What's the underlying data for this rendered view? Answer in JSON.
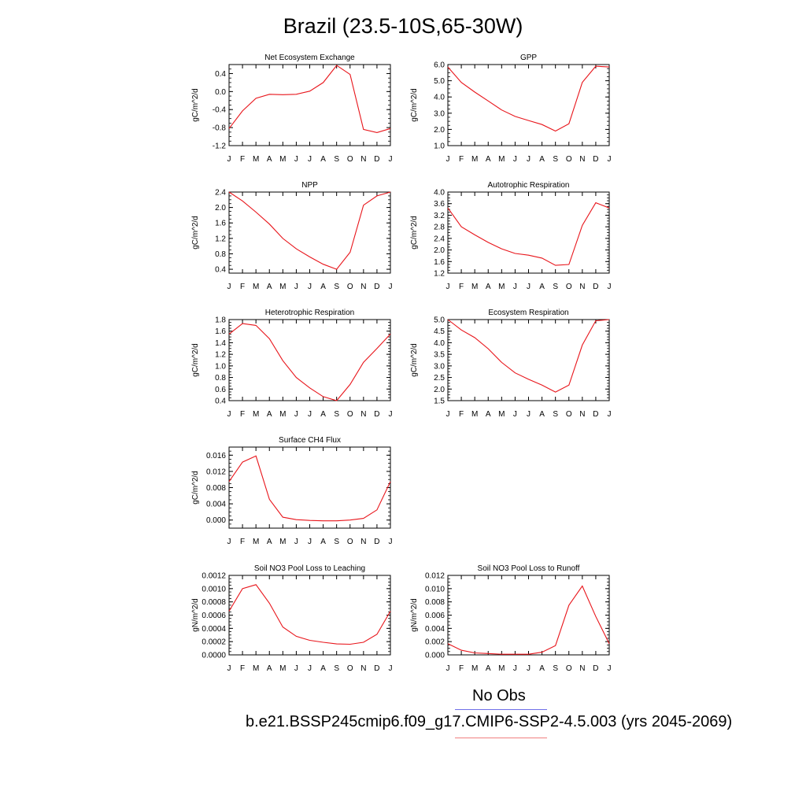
{
  "title": "Brazil (23.5-10S,65-30W)",
  "line_color": "#e8151b",
  "months": [
    "J",
    "F",
    "M",
    "A",
    "M",
    "J",
    "J",
    "A",
    "S",
    "O",
    "N",
    "D",
    "J"
  ],
  "legend": {
    "obs_label": "No Obs",
    "obs_color": "#6f6fe8",
    "model_label": "b.e21.BSSP245cmip6.f09_g17.CMIP6-SSP2-4.5.003 (yrs 2045-2069)",
    "model_color": "#f08080"
  },
  "chart_data": [
    {
      "type": "line",
      "title": "Net Ecosystem Exchange",
      "ylabel": "gC/m^2/d",
      "ylim": [
        -1.2,
        0.6
      ],
      "yticks": [
        "-1.2",
        "-0.8",
        "-0.4",
        "0.0",
        "0.4"
      ],
      "ytick_values": [
        -1.2,
        -0.8,
        -0.4,
        0.0,
        0.4
      ],
      "x": [
        "J",
        "F",
        "M",
        "A",
        "M",
        "J",
        "J",
        "A",
        "S",
        "O",
        "N",
        "D",
        "J"
      ],
      "values": [
        -0.82,
        -0.43,
        -0.15,
        -0.06,
        -0.07,
        -0.06,
        0.01,
        0.2,
        0.58,
        0.38,
        -0.84,
        -0.91,
        -0.82
      ]
    },
    {
      "type": "line",
      "title": "GPP",
      "ylabel": "gC/m^2/d",
      "ylim": [
        1.0,
        6.0
      ],
      "yticks": [
        "1.0",
        "2.0",
        "3.0",
        "4.0",
        "5.0",
        "6.0"
      ],
      "ytick_values": [
        1.0,
        2.0,
        3.0,
        4.0,
        5.0,
        6.0
      ],
      "x": [
        "J",
        "F",
        "M",
        "A",
        "M",
        "J",
        "J",
        "A",
        "S",
        "O",
        "N",
        "D",
        "J"
      ],
      "values": [
        5.85,
        4.9,
        4.3,
        3.75,
        3.2,
        2.8,
        2.55,
        2.3,
        1.9,
        2.35,
        4.9,
        5.9,
        5.85
      ]
    },
    {
      "type": "line",
      "title": "NPP",
      "ylabel": "gC/m^2/d",
      "ylim": [
        0.3,
        2.4
      ],
      "yticks": [
        "0.4",
        "0.8",
        "1.2",
        "1.6",
        "2.0",
        "2.4"
      ],
      "ytick_values": [
        0.4,
        0.8,
        1.2,
        1.6,
        2.0,
        2.4
      ],
      "x": [
        "J",
        "F",
        "M",
        "A",
        "M",
        "J",
        "J",
        "A",
        "S",
        "O",
        "N",
        "D",
        "J"
      ],
      "values": [
        2.4,
        2.17,
        1.88,
        1.57,
        1.2,
        0.93,
        0.72,
        0.53,
        0.4,
        0.84,
        2.06,
        2.3,
        2.4
      ]
    },
    {
      "type": "line",
      "title": "Autotrophic Respiration",
      "ylabel": "gC/m^2/d",
      "ylim": [
        1.2,
        4.0
      ],
      "yticks": [
        "1.2",
        "1.6",
        "2.0",
        "2.4",
        "2.8",
        "3.2",
        "3.6",
        "4.0"
      ],
      "ytick_values": [
        1.2,
        1.6,
        2.0,
        2.4,
        2.8,
        3.2,
        3.6,
        4.0
      ],
      "x": [
        "J",
        "F",
        "M",
        "A",
        "M",
        "J",
        "J",
        "A",
        "S",
        "O",
        "N",
        "D",
        "J"
      ],
      "values": [
        3.45,
        2.8,
        2.52,
        2.26,
        2.04,
        1.88,
        1.82,
        1.72,
        1.47,
        1.5,
        2.85,
        3.63,
        3.45
      ]
    },
    {
      "type": "line",
      "title": "Heterotrophic Respiration",
      "ylabel": "gC/m^2/d",
      "ylim": [
        0.4,
        1.8
      ],
      "yticks": [
        "0.4",
        "0.6",
        "0.8",
        "1.0",
        "1.2",
        "1.4",
        "1.6",
        "1.8"
      ],
      "ytick_values": [
        0.4,
        0.6,
        0.8,
        1.0,
        1.2,
        1.4,
        1.6,
        1.8
      ],
      "x": [
        "J",
        "F",
        "M",
        "A",
        "M",
        "J",
        "J",
        "A",
        "S",
        "O",
        "N",
        "D",
        "J"
      ],
      "values": [
        1.55,
        1.73,
        1.7,
        1.47,
        1.09,
        0.8,
        0.62,
        0.47,
        0.4,
        0.68,
        1.06,
        1.3,
        1.55
      ]
    },
    {
      "type": "line",
      "title": "Ecosystem Respiration",
      "ylabel": "gC/m^2/d",
      "ylim": [
        1.5,
        5.0
      ],
      "yticks": [
        "1.5",
        "2.0",
        "2.5",
        "3.0",
        "3.5",
        "4.0",
        "4.5",
        "5.0"
      ],
      "ytick_values": [
        1.5,
        2.0,
        2.5,
        3.0,
        3.5,
        4.0,
        4.5,
        5.0
      ],
      "x": [
        "J",
        "F",
        "M",
        "A",
        "M",
        "J",
        "J",
        "A",
        "S",
        "O",
        "N",
        "D",
        "J"
      ],
      "values": [
        5.0,
        4.55,
        4.22,
        3.74,
        3.15,
        2.7,
        2.42,
        2.17,
        1.87,
        2.17,
        3.9,
        4.95,
        5.0
      ]
    },
    {
      "type": "line",
      "title": "Surface CH4 Flux",
      "ylabel": "gC/m^2/d",
      "ylim": [
        -0.002,
        0.018
      ],
      "yticks": [
        "0.000",
        "0.004",
        "0.008",
        "0.012",
        "0.016"
      ],
      "ytick_values": [
        0.0,
        0.004,
        0.008,
        0.012,
        0.016
      ],
      "x": [
        "J",
        "F",
        "M",
        "A",
        "M",
        "J",
        "J",
        "A",
        "S",
        "O",
        "N",
        "D",
        "J"
      ],
      "values": [
        0.0095,
        0.0143,
        0.0158,
        0.0051,
        0.0007,
        0.0001,
        -0.0001,
        -0.0002,
        -0.0002,
        0.0,
        0.0004,
        0.0025,
        0.0095
      ]
    },
    {
      "type": "line",
      "title": "Soil NO3 Pool Loss to Leaching",
      "ylabel": "gN/m^2/d",
      "ylim": [
        0.0,
        0.0012
      ],
      "yticks": [
        "0.0000",
        "0.0002",
        "0.0004",
        "0.0006",
        "0.0008",
        "0.0010",
        "0.0012"
      ],
      "ytick_values": [
        0.0,
        0.0002,
        0.0004,
        0.0006,
        0.0008,
        0.001,
        0.0012
      ],
      "x": [
        "J",
        "F",
        "M",
        "A",
        "M",
        "J",
        "J",
        "A",
        "S",
        "O",
        "N",
        "D",
        "J"
      ],
      "values": [
        0.00066,
        0.001,
        0.00106,
        0.00078,
        0.00042,
        0.00028,
        0.00022,
        0.00019,
        0.000165,
        0.00016,
        0.00019,
        0.00031,
        0.00066
      ]
    },
    {
      "type": "line",
      "title": "Soil NO3 Pool Loss to Runoff",
      "ylabel": "gN/m^2/d",
      "ylim": [
        0.0,
        0.012
      ],
      "yticks": [
        "0.000",
        "0.002",
        "0.004",
        "0.006",
        "0.008",
        "0.010",
        "0.012"
      ],
      "ytick_values": [
        0.0,
        0.002,
        0.004,
        0.006,
        0.008,
        0.01,
        0.012
      ],
      "x": [
        "J",
        "F",
        "M",
        "A",
        "M",
        "J",
        "J",
        "A",
        "S",
        "O",
        "N",
        "D",
        "J"
      ],
      "values": [
        0.0017,
        0.0007,
        0.0003,
        0.0002,
        0.0001,
        0.0001,
        0.0001,
        0.0004,
        0.0014,
        0.0075,
        0.0104,
        0.0058,
        0.0017
      ]
    }
  ]
}
